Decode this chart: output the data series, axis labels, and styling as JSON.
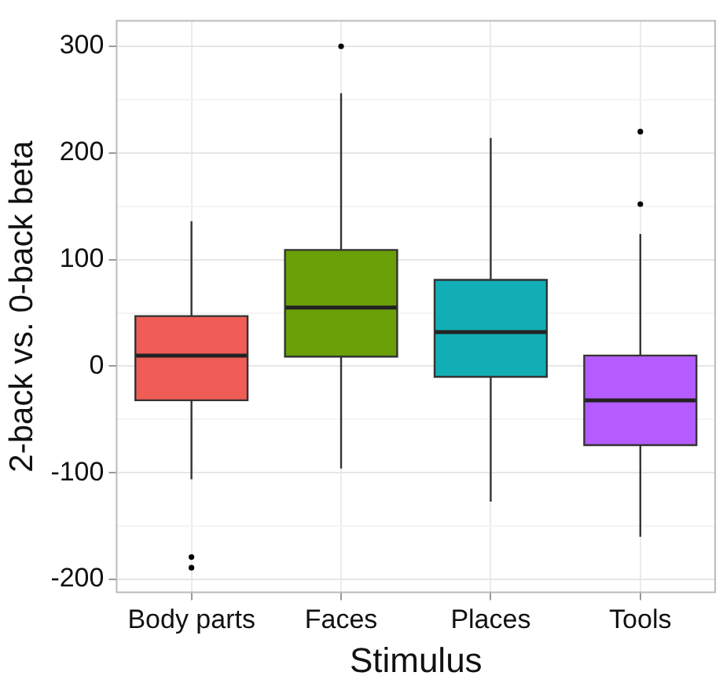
{
  "chart_data": {
    "type": "box",
    "xlabel": "Stimulus",
    "ylabel": "2-back vs. 0-back beta",
    "categories": [
      "Body parts",
      "Faces",
      "Places",
      "Tools"
    ],
    "colors": [
      "#f05d56",
      "#6a9f08",
      "#12aeb5",
      "#b45cff"
    ],
    "boxes": [
      {
        "low": -106,
        "q1": -32,
        "median": 10,
        "q3": 47,
        "high": 136,
        "outliers": [
          -179,
          -189
        ]
      },
      {
        "low": -96,
        "q1": 9,
        "median": 55,
        "q3": 109,
        "high": 256,
        "outliers": [
          300
        ]
      },
      {
        "low": -127,
        "q1": -10,
        "median": 32,
        "q3": 81,
        "high": 214
      },
      {
        "low": -160,
        "q1": -74,
        "median": -32,
        "q3": 10,
        "high": 124,
        "outliers": [
          220,
          152
        ]
      }
    ],
    "ylim": [
      -212,
      324
    ],
    "yticks": [
      -200,
      {
        "value": -150,
        "label": null
      },
      -100,
      {
        "value": -50,
        "label": null
      },
      0,
      {
        "value": 50,
        "label": null
      },
      100,
      {
        "value": 150,
        "label": null
      },
      200,
      {
        "value": 250,
        "label": null
      },
      300
    ],
    "grid": true,
    "legend": false
  }
}
